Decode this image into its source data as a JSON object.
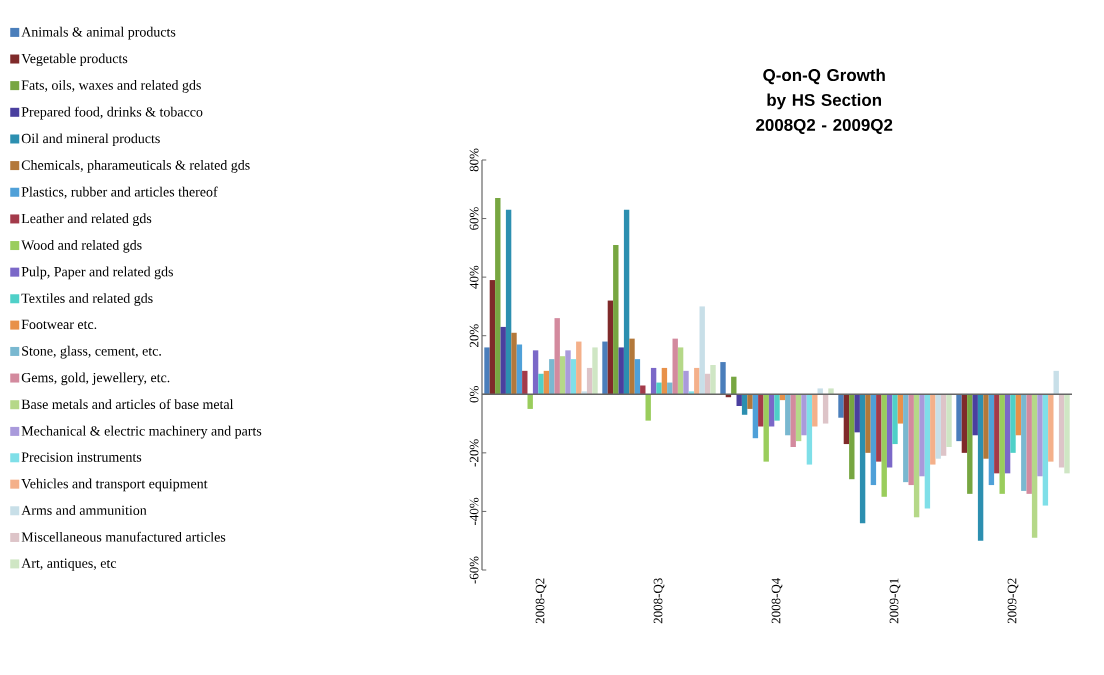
{
  "chart_data": {
    "type": "bar",
    "title": "Q-on-Q Growth by HS Section 2008Q2 - 2009Q2",
    "categories": [
      "2008-Q2",
      "2008-Q3",
      "2008-Q4",
      "2009-Q1",
      "2009-Q2"
    ],
    "ylim": [
      -60,
      80
    ],
    "yticks": [
      {
        "value": -60,
        "label": "-60%"
      },
      {
        "value": -40,
        "label": "-40%"
      },
      {
        "value": -20,
        "label": "-20%"
      },
      {
        "value": 0,
        "label": "0%"
      },
      {
        "value": 20,
        "label": "20%"
      },
      {
        "value": 40,
        "label": "40%"
      },
      {
        "value": 60,
        "label": "60%"
      },
      {
        "value": 80,
        "label": "80%"
      }
    ],
    "legend": "left",
    "series": [
      {
        "name": "Animals & animal products",
        "color": "#4a7ebb",
        "values": [
          16,
          18,
          11,
          -8,
          -16
        ]
      },
      {
        "name": "Vegetable products",
        "color": "#7f2a2a",
        "values": [
          39,
          32,
          -1,
          -17,
          -20
        ]
      },
      {
        "name": "Fats, oils, waxes and related gds",
        "color": "#77a641",
        "values": [
          67,
          51,
          6,
          -29,
          -34
        ]
      },
      {
        "name": "Prepared food, drinks & tobacco",
        "color": "#4a3f9f",
        "values": [
          23,
          16,
          -4,
          -13,
          -14
        ]
      },
      {
        "name": "Oil and mineral products",
        "color": "#2c8fb0",
        "values": [
          63,
          63,
          -7,
          -44,
          -50
        ]
      },
      {
        "name": "Chemicals, pharameuticals & related gds",
        "color": "#b3783a",
        "values": [
          21,
          19,
          -5,
          -20,
          -22
        ]
      },
      {
        "name": "Plastics, rubber and articles thereof",
        "color": "#4fa0d8",
        "values": [
          17,
          12,
          -15,
          -31,
          -31
        ]
      },
      {
        "name": "Leather and related gds",
        "color": "#a33a4a",
        "values": [
          8,
          3,
          -11,
          -23,
          -27
        ]
      },
      {
        "name": "Wood and related gds",
        "color": "#9acd5c",
        "values": [
          -5,
          -9,
          -23,
          -35,
          -34
        ]
      },
      {
        "name": "Pulp, Paper and related gds",
        "color": "#7b68c8",
        "values": [
          15,
          9,
          -11,
          -25,
          -27
        ]
      },
      {
        "name": "Textiles and related gds",
        "color": "#4fd0c8",
        "values": [
          7,
          4,
          -9,
          -17,
          -20
        ]
      },
      {
        "name": "Footwear etc.",
        "color": "#e8914a",
        "values": [
          8,
          9,
          -2,
          -10,
          -14
        ]
      },
      {
        "name": "Stone, glass, cement, etc.",
        "color": "#79b8d0",
        "values": [
          12,
          4,
          -14,
          -30,
          -33
        ]
      },
      {
        "name": "Gems, gold, jewellery, etc.",
        "color": "#d38a9e",
        "values": [
          26,
          19,
          -18,
          -31,
          -34
        ]
      },
      {
        "name": "Base metals and articles of base metal",
        "color": "#b5d888",
        "values": [
          13,
          16,
          -16,
          -42,
          -49
        ]
      },
      {
        "name": "Mechanical & electric machinery and parts",
        "color": "#a99adb",
        "values": [
          15,
          8,
          -14,
          -28,
          -28
        ]
      },
      {
        "name": "Precision instruments",
        "color": "#7fdfe8",
        "values": [
          12,
          1,
          -24,
          -39,
          -38
        ]
      },
      {
        "name": "Vehicles and transport equipment",
        "color": "#f4b08a",
        "values": [
          18,
          9,
          -11,
          -24,
          -23
        ]
      },
      {
        "name": "Arms and ammunition",
        "color": "#c8dfe8",
        "values": [
          1,
          30,
          2,
          -22,
          8
        ]
      },
      {
        "name": "Miscellaneous manufactured articles",
        "color": "#ddc4c8",
        "values": [
          9,
          7,
          -10,
          -21,
          -25
        ]
      },
      {
        "name": "Art, antiques, etc",
        "color": "#cfe6c4",
        "values": [
          16,
          10,
          2,
          -18,
          -27
        ]
      }
    ]
  }
}
